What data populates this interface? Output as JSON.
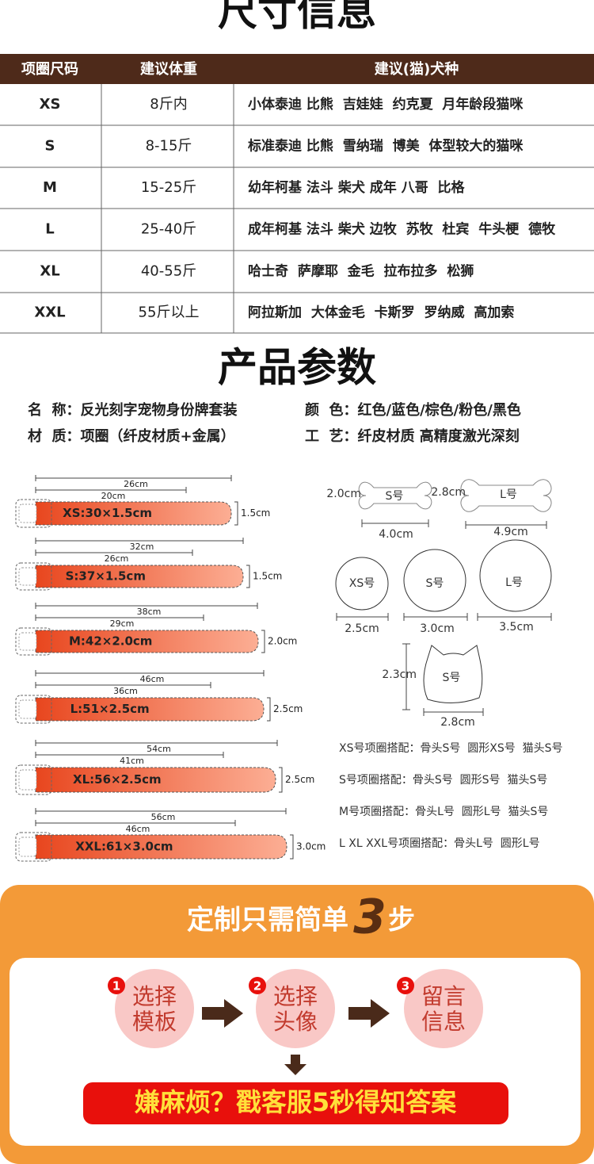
{
  "title": "尺寸信息",
  "size_table": {
    "headers": [
      "项圈尺码",
      "建议体重",
      "建议(猫)犬种"
    ],
    "rows": [
      [
        "XS",
        "8斤内",
        "小体泰迪 比熊  吉娃娃  约克夏  月年龄段猫咪"
      ],
      [
        "S",
        "8-15斤",
        "标准泰迪 比熊  雪纳瑞  博美  体型较大的猫咪"
      ],
      [
        "M",
        "15-25斤",
        "幼年柯基 法斗 柴犬 成年 八哥  比格"
      ],
      [
        "L",
        "25-40斤",
        "成年柯基 法斗 柴犬 边牧  苏牧  杜宾  牛头梗  德牧"
      ],
      [
        "XL",
        "40-55斤",
        "哈士奇  萨摩耶  金毛  拉布拉多  松狮"
      ],
      [
        "XXL",
        "55斤以上",
        "阿拉斯加  大体金毛  卡斯罗  罗纳威  高加索"
      ]
    ]
  },
  "params_title": "产品参数",
  "params": [
    "名  称：反光刻字宠物身份牌套装",
    "颜  色：红色/蓝色/棕色/粉色/黑色",
    "材  质：项圈（纤皮材质+金属）",
    "工  艺：纤皮材质 高精度激光深刻"
  ],
  "collars": [
    {
      "label": "XS:30×1.5cm",
      "outer": "26cm",
      "inner": "20cm",
      "width": "1.5cm"
    },
    {
      "label": "S:37×1.5cm",
      "outer": "32cm",
      "inner": "26cm",
      "width": "1.5cm"
    },
    {
      "label": "M:42×2.0cm",
      "outer": "38cm",
      "inner": "29cm",
      "width": "2.0cm"
    },
    {
      "label": "L:51×2.5cm",
      "outer": "46cm",
      "inner": "36cm",
      "width": "2.5cm"
    },
    {
      "label": "XL:56×2.5cm",
      "outer": "54cm",
      "inner": "41cm",
      "width": "2.5cm"
    },
    {
      "label": "XXL:61×3.0cm",
      "outer": "56cm",
      "inner": "46cm",
      "width": "3.0cm"
    }
  ],
  "tags": {
    "bone_s": {
      "name": "S号",
      "height": "2.0cm",
      "width": "4.0cm"
    },
    "bone_l": {
      "name": "L号",
      "height": "2.8cm",
      "width": "4.9cm"
    },
    "round_xs": {
      "name": "XS号",
      "diameter": "2.5cm"
    },
    "round_s": {
      "name": "S号",
      "diameter": "3.0cm"
    },
    "round_l": {
      "name": "L号",
      "diameter": "3.5cm"
    },
    "cat_s": {
      "name": "S号",
      "height": "2.3cm",
      "width": "2.8cm"
    }
  },
  "pairings": [
    "XS号项圈搭配：骨头S号  圆形XS号  猫头S号",
    "S号项圈搭配：骨头S号  圆形S号  猫头S号",
    "M号项圈搭配：骨头L号  圆形L号  猫头S号",
    "L XL XXL号项圈搭配：骨头L号  圆形L号"
  ],
  "steps_title": {
    "text": "定制只需简单",
    "number": "3",
    "suffix": "步"
  },
  "steps": [
    {
      "number": "1",
      "label": [
        "选择",
        "模板"
      ]
    },
    {
      "number": "2",
      "label": [
        "选择",
        "头像"
      ]
    },
    {
      "number": "3",
      "label": [
        "留言",
        "信息"
      ]
    }
  ],
  "banner": "嫌麻烦？戳客服5秒得知答案"
}
